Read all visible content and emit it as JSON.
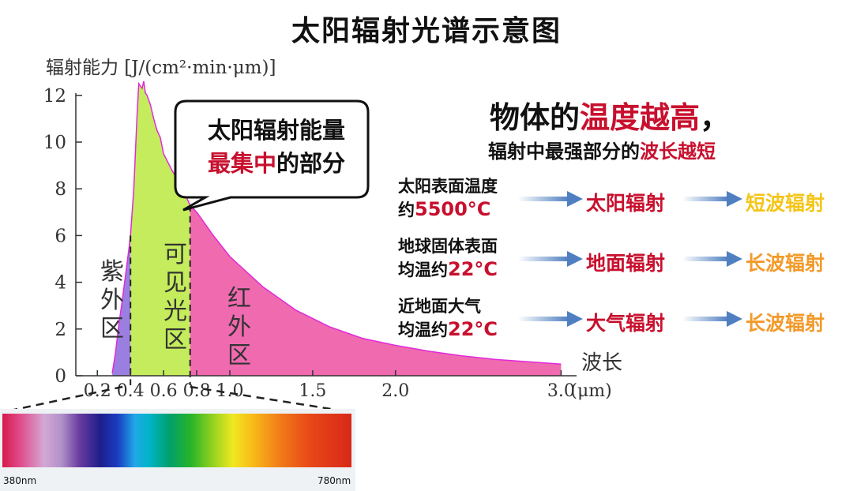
{
  "title": "太阳辐射光谱示意图",
  "y_axis_label": "辐射能力 [J/(cm²·min·μm)]",
  "callout": {
    "line1": "太阳辐射能量",
    "line2_red": "最集中",
    "line2_rest": "的部分"
  },
  "regions": {
    "uv": "紫外区",
    "visible": "可见光区",
    "ir": "红外区"
  },
  "x_axis_name": "波长",
  "rule": {
    "line1_a": "物体的",
    "line1_red": "温度越高",
    "line1_b": "，",
    "line2_a": "辐射中最强部分的",
    "line2_red": "波长越短"
  },
  "rows": [
    {
      "cond1": "太阳表面温度",
      "cond2_a": "约",
      "cond2_temp": "5500°C",
      "rad1": "太阳辐射",
      "rad2": "短波辐射",
      "rad2_color": "#f5c518"
    },
    {
      "cond1": "地球固体表面",
      "cond2_a": "均温约",
      "cond2_temp": "22°C",
      "rad1": "地面辐射",
      "rad2": "长波辐射",
      "rad2_color": "#f39a2a"
    },
    {
      "cond1": "近地面大气",
      "cond2_a": "均温约",
      "cond2_temp": "22°C",
      "rad1": "大气辐射",
      "rad2": "长波辐射",
      "rad2_color": "#f39a2a"
    }
  ],
  "spectrum": {
    "left_label": "380nm",
    "right_label": "780nm"
  },
  "colors": {
    "red": "#c8102e",
    "uv": "#9b7fe0",
    "visible": "#c4ec5c",
    "ir": "#f06ab0",
    "curve": "#e02ad8",
    "arrow": "#5b8fc7"
  },
  "chart_data": {
    "type": "area",
    "xlabel": "波长",
    "ylabel": "辐射能力 [J/(cm²·min·μm)]",
    "x_unit": "μm",
    "x_ticks": [
      {
        "v": 0.2,
        "label": "0.2"
      },
      {
        "v": 0.4,
        "label": "0.4"
      },
      {
        "v": 0.6,
        "label": "0.6"
      },
      {
        "v": 0.8,
        "label": "0.8"
      },
      {
        "v": 1.0,
        "label": "1.0"
      },
      {
        "v": 1.5,
        "label": "1.5"
      },
      {
        "v": 2.0,
        "label": "2.0"
      },
      {
        "v": 3.0,
        "label": "3.0"
      }
    ],
    "y_ticks": [
      0,
      2,
      4,
      6,
      8,
      10,
      12
    ],
    "xlim": [
      0.07,
      3.0
    ],
    "ylim": [
      0,
      12.5
    ],
    "region_bounds": [
      0.4,
      0.76
    ],
    "curve": [
      [
        0.29,
        0.1
      ],
      [
        0.31,
        1.0
      ],
      [
        0.33,
        2.2
      ],
      [
        0.35,
        3.2
      ],
      [
        0.37,
        4.3
      ],
      [
        0.39,
        5.4
      ],
      [
        0.4,
        6.0
      ],
      [
        0.42,
        8.0
      ],
      [
        0.44,
        11.2
      ],
      [
        0.45,
        12.5
      ],
      [
        0.46,
        12.4
      ],
      [
        0.47,
        12.3
      ],
      [
        0.48,
        12.6
      ],
      [
        0.49,
        12.1
      ],
      [
        0.5,
        12.0
      ],
      [
        0.52,
        11.6
      ],
      [
        0.54,
        11.0
      ],
      [
        0.56,
        10.5
      ],
      [
        0.58,
        10.2
      ],
      [
        0.6,
        9.5
      ],
      [
        0.65,
        8.8
      ],
      [
        0.7,
        8.2
      ],
      [
        0.76,
        7.3
      ],
      [
        0.8,
        7.0
      ],
      [
        0.9,
        6.0
      ],
      [
        1.0,
        5.1
      ],
      [
        1.2,
        3.8
      ],
      [
        1.4,
        2.8
      ],
      [
        1.6,
        2.1
      ],
      [
        1.8,
        1.6
      ],
      [
        2.0,
        1.3
      ],
      [
        2.2,
        1.05
      ],
      [
        2.4,
        0.85
      ],
      [
        2.6,
        0.7
      ],
      [
        2.8,
        0.6
      ],
      [
        3.0,
        0.5
      ]
    ]
  }
}
